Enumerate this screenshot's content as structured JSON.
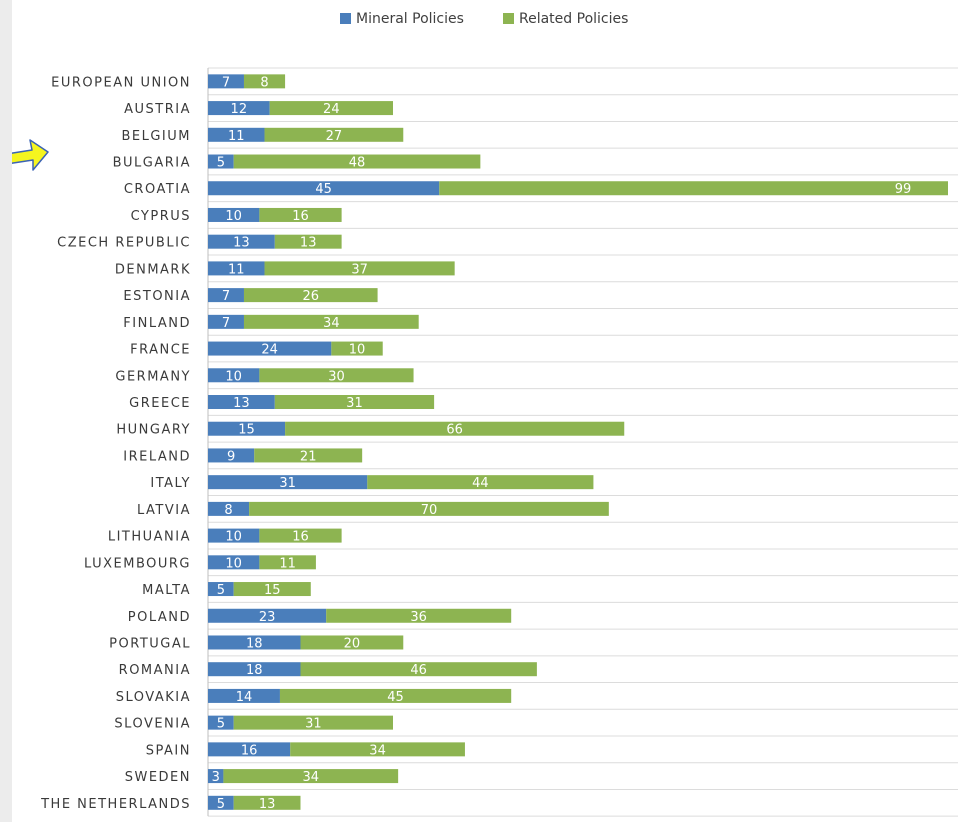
{
  "colors": {
    "mineral": "#4a7ebb",
    "related": "#8db451",
    "grid": "#dcdcdc",
    "label": "#3a3a3a",
    "bar_label": "#ffffff",
    "arrow_fill": "#f5f51f",
    "arrow_stroke": "#3b63b5"
  },
  "icons": {
    "annotation_arrow": "right-arrow-icon",
    "legend_marker": "square-swatch-icon"
  },
  "chart_data": {
    "type": "bar",
    "orientation": "horizontal",
    "stacked": true,
    "title": "",
    "xlabel": "",
    "ylabel": "",
    "xlim": [
      0,
      144
    ],
    "grid": true,
    "legend_position": "top-center",
    "categories": [
      "EUROPEAN UNION",
      "AUSTRIA",
      "BELGIUM",
      "BULGARIA",
      "CROATIA",
      "CYPRUS",
      "CZECH REPUBLIC",
      "DENMARK",
      "ESTONIA",
      "FINLAND",
      "FRANCE",
      "GERMANY",
      "GREECE",
      "HUNGARY",
      "IRELAND",
      "ITALY",
      "LATVIA",
      "LITHUANIA",
      "LUXEMBOURG",
      "MALTA",
      "POLAND",
      "PORTUGAL",
      "ROMANIA",
      "SLOVAKIA",
      "SLOVENIA",
      "SPAIN",
      "SWEDEN",
      "THE NETHERLANDS"
    ],
    "series": [
      {
        "name": "Mineral Policies",
        "color": "#4a7ebb",
        "values": [
          7,
          12,
          11,
          5,
          45,
          10,
          13,
          11,
          7,
          7,
          24,
          10,
          13,
          15,
          9,
          31,
          8,
          10,
          10,
          5,
          23,
          18,
          18,
          14,
          5,
          16,
          3,
          5
        ]
      },
      {
        "name": "Related Policies",
        "color": "#8db451",
        "values": [
          8,
          24,
          27,
          48,
          99,
          16,
          13,
          37,
          26,
          34,
          10,
          30,
          31,
          66,
          21,
          44,
          70,
          16,
          11,
          15,
          36,
          20,
          46,
          45,
          31,
          34,
          34,
          13
        ]
      }
    ]
  }
}
